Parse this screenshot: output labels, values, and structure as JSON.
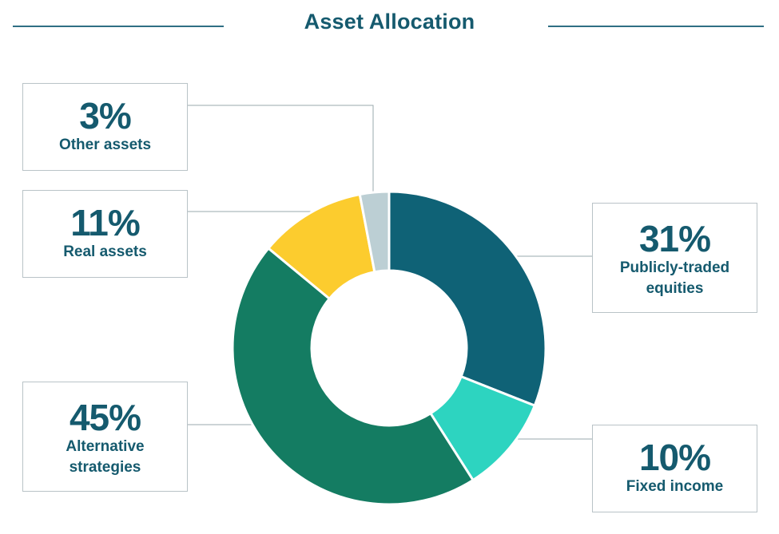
{
  "title": "Asset Allocation",
  "chart_data": {
    "type": "pie",
    "donut": true,
    "title": "Asset Allocation",
    "slices": [
      {
        "label": "Publicly-traded equities",
        "value": 31,
        "display": "31%",
        "color": "#0f6276"
      },
      {
        "label": "Fixed income",
        "value": 10,
        "display": "10%",
        "color": "#2dd4c0"
      },
      {
        "label": "Alternative strategies",
        "value": 45,
        "display": "45%",
        "color": "#147c62"
      },
      {
        "label": "Real assets",
        "value": 11,
        "display": "11%",
        "color": "#fccc2e"
      },
      {
        "label": "Other assets",
        "value": 3,
        "display": "3%",
        "color": "#bccfd4"
      }
    ]
  },
  "labels": {
    "equity": {
      "pct": "31%",
      "name": "Publicly-traded equities"
    },
    "fixed": {
      "pct": "10%",
      "name": "Fixed income"
    },
    "alt": {
      "pct": "45%",
      "name": "Alternative strategies"
    },
    "real": {
      "pct": "11%",
      "name": "Real assets"
    },
    "other": {
      "pct": "3%",
      "name": "Other assets"
    }
  },
  "colors": {
    "text": "#155a6e",
    "rule": "#2f6f84",
    "box_border": "#b9c3c7",
    "leader": "#9aa9ae"
  }
}
